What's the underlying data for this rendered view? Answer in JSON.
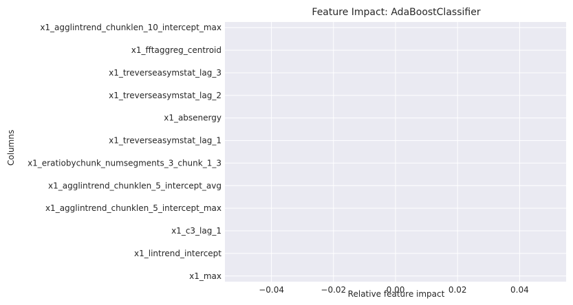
{
  "chart_data": {
    "type": "bar",
    "orientation": "horizontal",
    "title": "Feature Impact: AdaBoostClassifier",
    "xlabel": "Relative feature impact",
    "ylabel": "Columns",
    "categories": [
      "x1_agglintrend_chunklen_10_intercept_max",
      "x1_fftaggreg_centroid",
      "x1_treverseasymstat_lag_3",
      "x1_treverseasymstat_lag_2",
      "x1_absenergy",
      "x1_treverseasymstat_lag_1",
      "x1_eratiobychunk_numsegments_3_chunk_1_3",
      "x1_agglintrend_chunklen_5_intercept_avg",
      "x1_agglintrend_chunklen_5_intercept_max",
      "x1_c3_lag_1",
      "x1_lintrend_intercept",
      "x1_max"
    ],
    "values": [
      0,
      0,
      0,
      0,
      0,
      0,
      0,
      0,
      0,
      0,
      0,
      0
    ],
    "xlim": [
      -0.055,
      0.055
    ],
    "xticks": [
      -0.04,
      -0.02,
      0.0,
      0.02,
      0.04
    ],
    "xtick_labels": [
      "−0.04",
      "−0.02",
      "0.00",
      "0.02",
      "0.04"
    ],
    "grid": true,
    "colors": {
      "plot_background": "#eaeaf2",
      "grid": "#ffffff",
      "text": "#262626"
    }
  }
}
